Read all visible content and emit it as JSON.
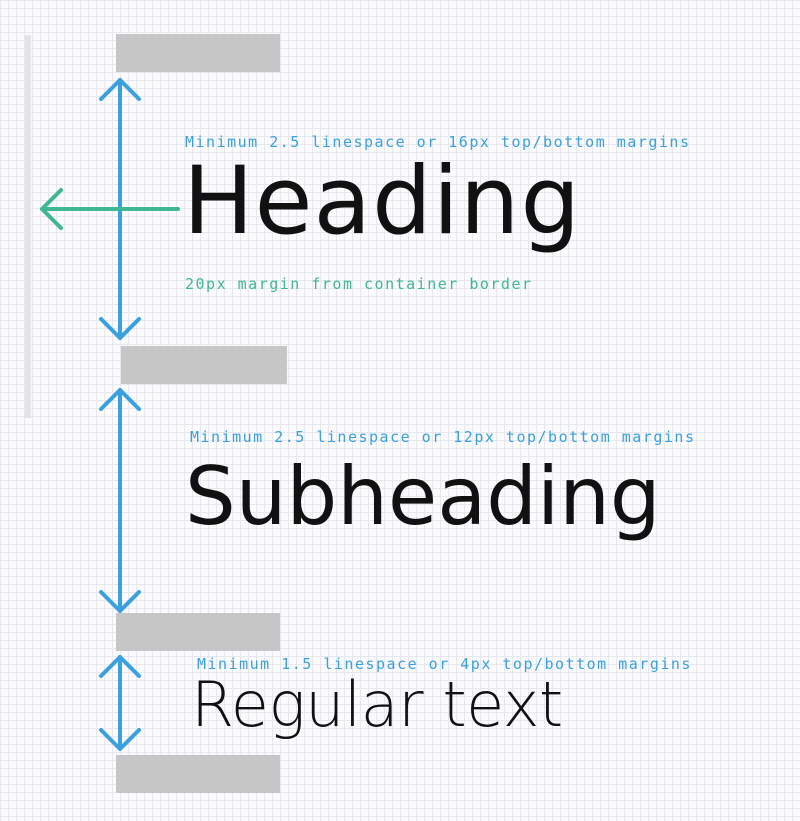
{
  "colors": {
    "vertical_arrows": "#3aa0de",
    "margin_arrow": "#3eb792",
    "placeholder_blocks": "#c6c6c6",
    "container_border": "#e4e4e4",
    "sample_text": "#111111"
  },
  "annotations": {
    "heading_spacing": "Minimum 2.5 linespace or 16px top/bottom margins",
    "container_margin": "20px margin from container border",
    "subheading_spacing": "Minimum 2.5 linespace or 12px top/bottom margins",
    "regular_spacing": "Minimum 1.5 linespace or 4px top/bottom margins"
  },
  "samples": {
    "heading": "Heading",
    "subheading": "Subheading",
    "regular": "Regular text"
  }
}
